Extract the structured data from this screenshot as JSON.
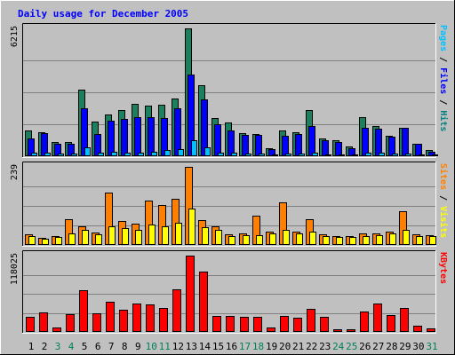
{
  "chart_data": {
    "type": "bar",
    "title": "Daily usage for December 2005",
    "categories": [
      "1",
      "2",
      "3",
      "4",
      "5",
      "6",
      "7",
      "8",
      "9",
      "10",
      "11",
      "12",
      "13",
      "14",
      "15",
      "16",
      "17",
      "18",
      "19",
      "20",
      "21",
      "22",
      "23",
      "24",
      "25",
      "26",
      "27",
      "28",
      "29",
      "30",
      "31"
    ],
    "weekend_days": [
      "3",
      "4",
      "10",
      "11",
      "17",
      "18",
      "24",
      "25",
      "31"
    ],
    "panels": [
      {
        "name": "top",
        "max_label": "6215",
        "ylim": [
          0,
          6215
        ],
        "side_labels": [
          {
            "text": "Pages",
            "color": "#00c0ff"
          },
          {
            "text": " / ",
            "color": "#000000"
          },
          {
            "text": "Files",
            "color": "#0000ff"
          },
          {
            "text": " / ",
            "color": "#000000"
          },
          {
            "text": "Hits",
            "color": "#008080"
          }
        ],
        "series": [
          {
            "name": "Hits",
            "color": "#1a8060",
            "values": [
              1250,
              1180,
              680,
              700,
              3240,
              1680,
              2030,
              2250,
              2550,
              2480,
              2500,
              2800,
              6215,
              3450,
              1850,
              1650,
              1120,
              1100,
              400,
              1250,
              1180,
              2240,
              850,
              780,
              480,
              1900,
              1480,
              1000,
              1400,
              620,
              300
            ]
          },
          {
            "name": "Files",
            "color": "#0000ff",
            "values": [
              850,
              1120,
              620,
              610,
              2350,
              1070,
              1730,
              1800,
              1900,
              1900,
              1850,
              2320,
              3950,
              2750,
              1550,
              1270,
              1050,
              1050,
              330,
              980,
              1080,
              1450,
              770,
              700,
              400,
              1400,
              1350,
              940,
              1380,
              600,
              200
            ]
          },
          {
            "name": "Pages",
            "color": "#00c0ff",
            "values": [
              160,
              160,
              140,
              120,
              450,
              180,
              200,
              180,
              190,
              220,
              300,
              330,
              760,
              420,
              180,
              160,
              140,
              120,
              60,
              150,
              140,
              160,
              100,
              90,
              50,
              180,
              160,
              120,
              150,
              60,
              40
            ]
          }
        ]
      },
      {
        "name": "middle",
        "max_label": "239",
        "ylim": [
          0,
          239
        ],
        "side_labels": [
          {
            "text": "Sites",
            "color": "#ff8000"
          },
          {
            "text": " / ",
            "color": "#000000"
          },
          {
            "text": "Visits",
            "color": "#ffff00"
          }
        ],
        "series": [
          {
            "name": "Visits",
            "color": "#ff8000",
            "values": [
              33,
              23,
              28,
              80,
              57,
              38,
              161,
              72,
              65,
              136,
              121,
              141,
              239,
              75,
              58,
              33,
              36,
              89,
              41,
              131,
              41,
              78,
              33,
              27,
              26,
              36,
              36,
              40,
              103,
              33,
              29
            ]
          },
          {
            "name": "Sites",
            "color": "#ffff00",
            "values": [
              28,
              18,
              24,
              34,
              47,
              33,
              58,
              51,
              46,
              62,
              56,
              67,
              111,
              54,
              46,
              27,
              30,
              31,
              36,
              47,
              35,
              42,
              28,
              24,
              25,
              28,
              31,
              35,
              45,
              27,
              26
            ]
          }
        ]
      },
      {
        "name": "bottom",
        "max_label": "118025",
        "ylim": [
          0,
          118025
        ],
        "side_labels": [
          {
            "text": "KBytes",
            "color": "#ff0000"
          }
        ],
        "series": [
          {
            "name": "KBytes",
            "color": "#ff0000",
            "values": [
              23000,
              30000,
              6500,
              28000,
              64000,
              29000,
              47000,
              34000,
              44000,
              43000,
              37000,
              66000,
              118025,
              94000,
              25000,
              25000,
              24000,
              24000,
              7500,
              25000,
              22000,
              35000,
              23000,
              4000,
              4000,
              32000,
              44000,
              26000,
              37000,
              9800,
              5900
            ]
          }
        ]
      }
    ]
  }
}
